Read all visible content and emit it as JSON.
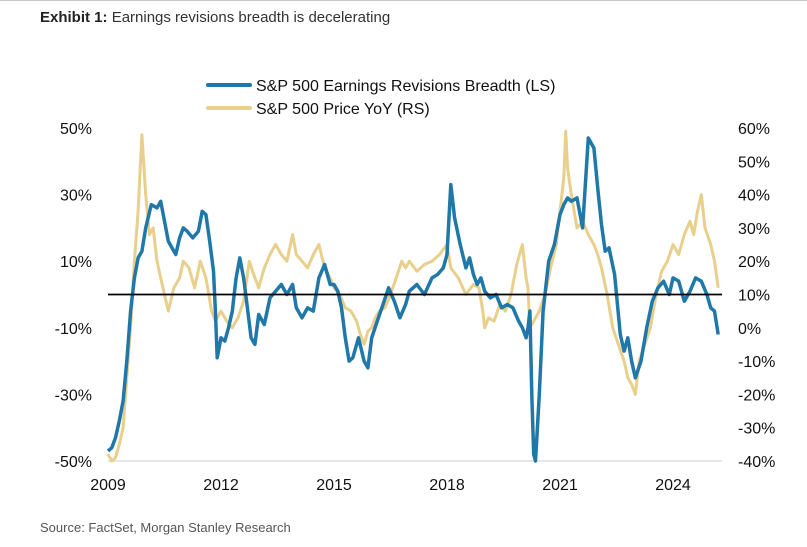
{
  "header": {
    "exhibit_label": "Exhibit 1:",
    "exhibit_title": "Earnings revisions breadth is decelerating"
  },
  "footer": {
    "source": "Source: FactSet, Morgan Stanley Research"
  },
  "colors": {
    "breadth": "#1f78a8",
    "price": "#e8cf8c",
    "zero_line": "#000000",
    "text": "#111111"
  },
  "chart_data": {
    "type": "line",
    "title": "Earnings revisions breadth is decelerating",
    "xlim": [
      2009.0,
      2025.3
    ],
    "x_ticks": [
      2009,
      2012,
      2015,
      2018,
      2021,
      2024
    ],
    "x_tick_labels": [
      "2009",
      "2012",
      "2015",
      "2018",
      "2021",
      "2024"
    ],
    "y_left": {
      "range": [
        -50,
        50
      ],
      "ticks": [
        50,
        30,
        10,
        -10,
        -30,
        -50
      ],
      "tick_labels": [
        "50%",
        "30%",
        "10%",
        "-10%",
        "-30%",
        "-50%"
      ]
    },
    "y_right": {
      "range": [
        -40,
        60
      ],
      "ticks": [
        60,
        50,
        40,
        30,
        20,
        10,
        0,
        -10,
        -20,
        -30,
        -40
      ],
      "tick_labels": [
        "60%",
        "50%",
        "40%",
        "30%",
        "20%",
        "10%",
        "0%",
        "-10%",
        "-20%",
        "-30%",
        "-40%"
      ]
    },
    "reference_line": {
      "axis": "left",
      "value": 0
    },
    "legend": {
      "position": "top-center",
      "entries": [
        "S&P 500 Earnings Revisions Breadth (LS)",
        "S&P 500 Price YoY (RS)"
      ]
    },
    "series": [
      {
        "name": "S&P 500 Earnings Revisions Breadth (LS)",
        "axis": "left",
        "x": [
          2009.0,
          2009.1,
          2009.2,
          2009.3,
          2009.4,
          2009.5,
          2009.6,
          2009.7,
          2009.8,
          2009.9,
          2010.0,
          2010.15,
          2010.3,
          2010.4,
          2010.5,
          2010.6,
          2010.7,
          2010.8,
          2010.9,
          2011.0,
          2011.1,
          2011.25,
          2011.4,
          2011.5,
          2011.6,
          2011.7,
          2011.8,
          2011.85,
          2011.9,
          2012.0,
          2012.1,
          2012.2,
          2012.3,
          2012.4,
          2012.5,
          2012.6,
          2012.7,
          2012.8,
          2012.9,
          2013.0,
          2013.15,
          2013.3,
          2013.45,
          2013.6,
          2013.75,
          2013.9,
          2014.0,
          2014.15,
          2014.3,
          2014.45,
          2014.6,
          2014.75,
          2014.9,
          2015.0,
          2015.1,
          2015.2,
          2015.3,
          2015.4,
          2015.5,
          2015.65,
          2015.8,
          2015.9,
          2016.0,
          2016.15,
          2016.3,
          2016.45,
          2016.6,
          2016.75,
          2016.9,
          2017.0,
          2017.2,
          2017.4,
          2017.6,
          2017.75,
          2017.9,
          2018.0,
          2018.1,
          2018.2,
          2018.35,
          2018.5,
          2018.6,
          2018.7,
          2018.8,
          2018.9,
          2019.0,
          2019.15,
          2019.3,
          2019.45,
          2019.6,
          2019.75,
          2019.9,
          2020.0,
          2020.1,
          2020.15,
          2020.2,
          2020.25,
          2020.3,
          2020.35,
          2020.45,
          2020.55,
          2020.7,
          2020.85,
          2021.0,
          2021.1,
          2021.2,
          2021.3,
          2021.45,
          2021.6,
          2021.75,
          2021.9,
          2022.0,
          2022.1,
          2022.2,
          2022.3,
          2022.45,
          2022.6,
          2022.7,
          2022.8,
          2022.9,
          2023.0,
          2023.15,
          2023.3,
          2023.45,
          2023.6,
          2023.75,
          2023.9,
          2024.0,
          2024.15,
          2024.3,
          2024.45,
          2024.6,
          2024.75,
          2024.9,
          2025.0,
          2025.1,
          2025.2
        ],
        "values": [
          -47,
          -46,
          -43,
          -38,
          -32,
          -20,
          -5,
          5,
          11,
          13,
          20,
          27,
          26,
          28,
          22,
          16,
          14,
          12,
          17,
          20,
          19,
          17,
          19,
          25,
          24,
          16,
          7,
          -5,
          -19,
          -13,
          -14,
          -10,
          -5,
          5,
          11,
          5,
          -4,
          -13,
          -15,
          -6,
          -9,
          -1,
          1,
          3,
          0,
          3,
          -4,
          -7,
          -4,
          -5,
          5,
          9,
          3,
          3,
          1,
          -4,
          -13,
          -20,
          -19,
          -13,
          -20,
          -22,
          -13,
          -8,
          -3,
          2,
          -2,
          -7,
          -3,
          1,
          3,
          0,
          5,
          6,
          8,
          12,
          33,
          23,
          15,
          8,
          11,
          6,
          3,
          5,
          1,
          -1,
          0,
          -4,
          -3,
          -4,
          -8,
          -10,
          -13,
          -10,
          -5,
          -30,
          -48,
          -50,
          -30,
          -5,
          10,
          15,
          24,
          27,
          29,
          28,
          29,
          20,
          47,
          44,
          32,
          21,
          13,
          14,
          6,
          -12,
          -17,
          -13,
          -20,
          -25,
          -20,
          -10,
          -2,
          2,
          4,
          0,
          5,
          4,
          -2,
          1,
          5,
          4,
          0,
          -4,
          -5,
          -12
        ]
      },
      {
        "name": "S&P 500 Price YoY (RS)",
        "axis": "right",
        "x": [
          2009.0,
          2009.1,
          2009.2,
          2009.3,
          2009.4,
          2009.5,
          2009.6,
          2009.7,
          2009.8,
          2009.9,
          2010.0,
          2010.1,
          2010.2,
          2010.3,
          2010.4,
          2010.5,
          2010.6,
          2010.75,
          2010.9,
          2011.0,
          2011.15,
          2011.3,
          2011.45,
          2011.6,
          2011.75,
          2011.85,
          2012.0,
          2012.15,
          2012.3,
          2012.45,
          2012.6,
          2012.75,
          2012.9,
          2013.0,
          2013.15,
          2013.3,
          2013.45,
          2013.6,
          2013.75,
          2013.9,
          2014.0,
          2014.15,
          2014.3,
          2014.45,
          2014.6,
          2014.75,
          2014.9,
          2015.0,
          2015.15,
          2015.3,
          2015.45,
          2015.6,
          2015.7,
          2015.8,
          2015.9,
          2016.0,
          2016.1,
          2016.2,
          2016.35,
          2016.5,
          2016.65,
          2016.8,
          2016.9,
          2017.0,
          2017.2,
          2017.4,
          2017.6,
          2017.8,
          2018.0,
          2018.1,
          2018.3,
          2018.5,
          2018.7,
          2018.85,
          2018.95,
          2019.0,
          2019.1,
          2019.25,
          2019.4,
          2019.55,
          2019.7,
          2019.85,
          2020.0,
          2020.1,
          2020.15,
          2020.2,
          2020.3,
          2020.45,
          2020.6,
          2020.75,
          2020.9,
          2021.0,
          2021.1,
          2021.15,
          2021.2,
          2021.3,
          2021.45,
          2021.6,
          2021.75,
          2021.9,
          2022.0,
          2022.1,
          2022.25,
          2022.4,
          2022.55,
          2022.7,
          2022.8,
          2022.9,
          2023.0,
          2023.1,
          2023.25,
          2023.4,
          2023.55,
          2023.7,
          2023.85,
          2024.0,
          2024.15,
          2024.3,
          2024.45,
          2024.55,
          2024.65,
          2024.75,
          2024.85,
          2025.0,
          2025.1,
          2025.2
        ],
        "values": [
          -38,
          -40,
          -39,
          -35,
          -30,
          -15,
          0,
          20,
          35,
          58,
          40,
          28,
          30,
          20,
          15,
          10,
          5,
          12,
          15,
          20,
          18,
          12,
          20,
          15,
          5,
          2,
          5,
          2,
          0,
          3,
          8,
          20,
          15,
          12,
          18,
          22,
          25,
          22,
          20,
          28,
          22,
          20,
          18,
          22,
          25,
          18,
          15,
          12,
          10,
          6,
          5,
          2,
          -2,
          -5,
          -1,
          0,
          3,
          5,
          6,
          10,
          15,
          20,
          18,
          20,
          17,
          19,
          20,
          22,
          25,
          18,
          15,
          10,
          13,
          12,
          5,
          0,
          3,
          2,
          7,
          5,
          10,
          19,
          25,
          15,
          12,
          0,
          2,
          5,
          10,
          18,
          25,
          35,
          45,
          59,
          48,
          40,
          30,
          32,
          28,
          25,
          22,
          18,
          10,
          0,
          -5,
          -10,
          -15,
          -17,
          -20,
          -10,
          -5,
          0,
          10,
          17,
          20,
          25,
          22,
          28,
          32,
          28,
          35,
          40,
          30,
          25,
          20,
          12
        ]
      }
    ]
  }
}
